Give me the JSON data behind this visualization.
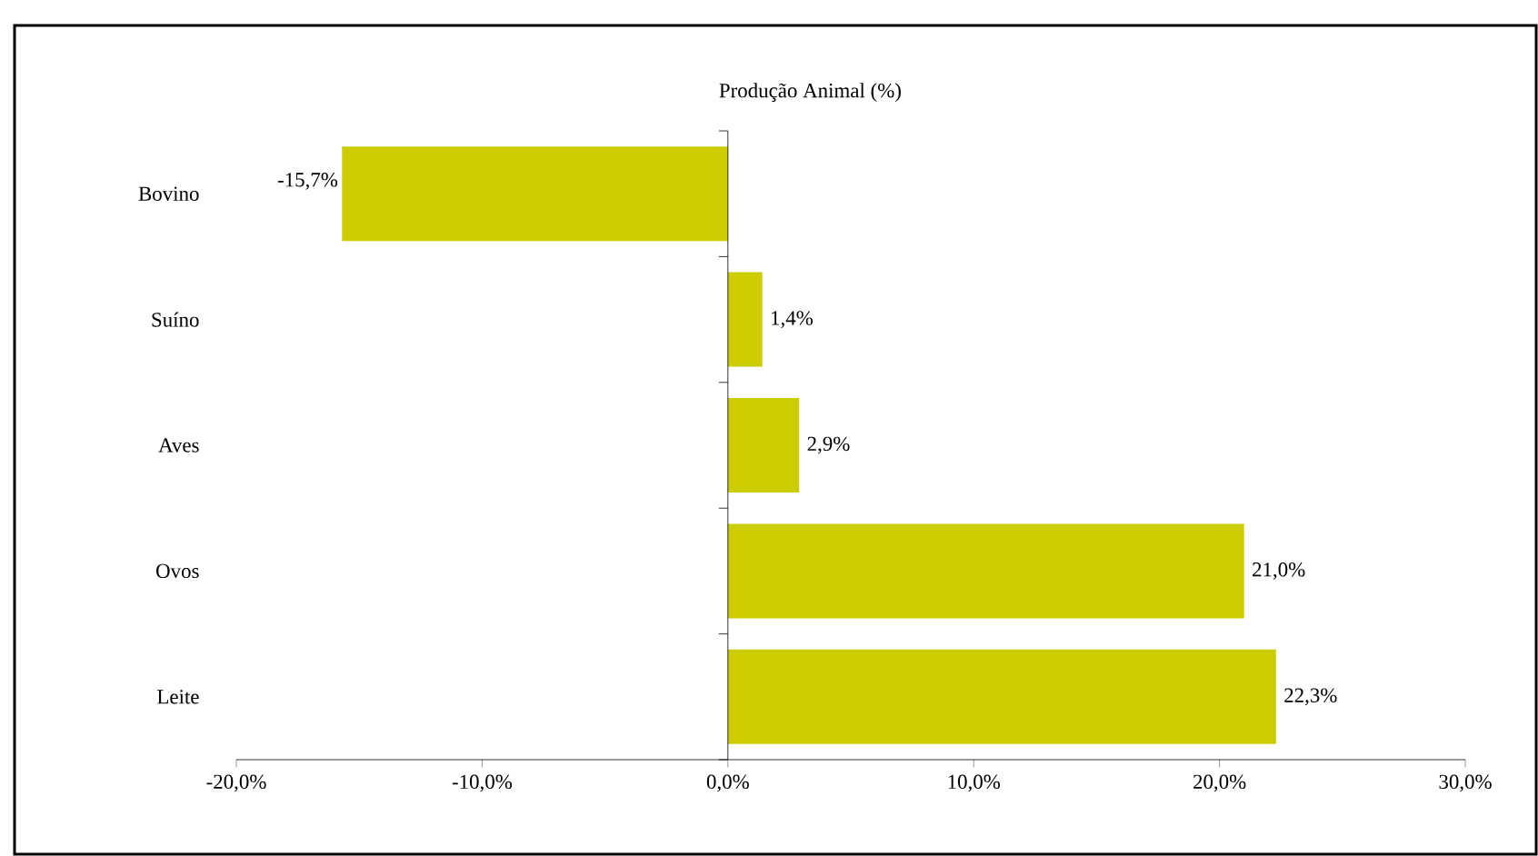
{
  "chart_data": {
    "type": "bar",
    "orientation": "horizontal",
    "title": "Produção Animal (%)",
    "categories": [
      "Bovino",
      "Suíno",
      "Aves",
      "Ovos",
      "Leite"
    ],
    "values": [
      -15.7,
      1.4,
      2.9,
      21.0,
      22.3
    ],
    "value_labels": [
      "-15,7%",
      "1,4%",
      "2,9%",
      "21,0%",
      "22,3%"
    ],
    "color": "#cccc00",
    "xlim": [
      -20,
      30
    ],
    "xticks": [
      {
        "value": -20,
        "label": "-20,0%"
      },
      {
        "value": -10,
        "label": "-10,0%"
      },
      {
        "value": 0,
        "label": "0,0%"
      },
      {
        "value": 10,
        "label": "10,0%"
      },
      {
        "value": 20,
        "label": "20,0%"
      },
      {
        "value": 30,
        "label": "30,0%"
      }
    ]
  }
}
